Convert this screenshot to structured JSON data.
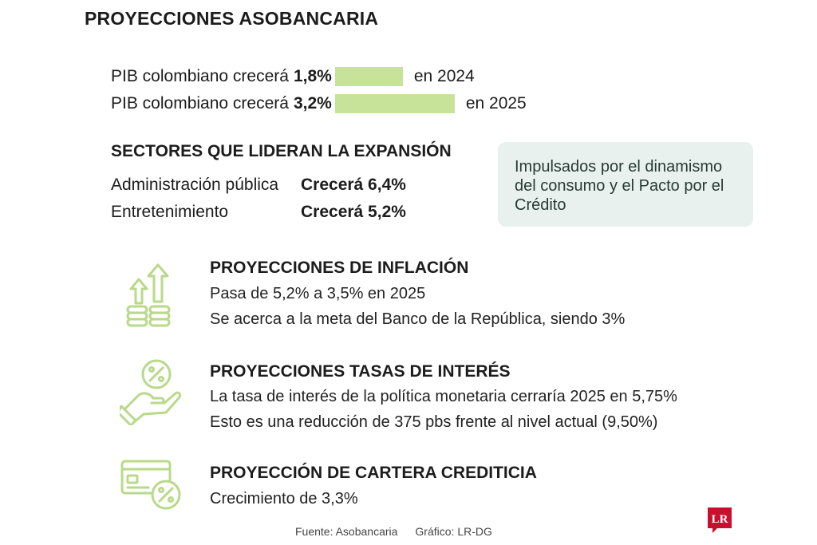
{
  "header": {
    "title": "PROYECCIONES ASOBANCARIA"
  },
  "chart_data": {
    "type": "bar",
    "title": "",
    "categories": [
      "2024",
      "2025"
    ],
    "series": [
      {
        "values": [
          1.8,
          3.2
        ]
      }
    ],
    "row_labels": [
      {
        "prefix": "PIB colombiano crecerá",
        "value_text": "1,8%",
        "suffix": "en 2024"
      },
      {
        "prefix": "PIB colombiano crecerá",
        "value_text": "3,2%",
        "suffix": "en 2025"
      }
    ],
    "colors": {
      "bar": "#c7e39a"
    }
  },
  "sectors": {
    "title": "SECTORES QUE LIDERAN LA EXPANSIÓN",
    "items": [
      {
        "name": "Administración pública",
        "growth": "Crecerá 6,4%"
      },
      {
        "name": "Entretenimiento",
        "growth": "Crecerá 5,2%"
      }
    ]
  },
  "note": {
    "text": "Impulsados por el dinamismo del consumo y el Pacto por el Crédito"
  },
  "sections": [
    {
      "icon": "rising-coins-icon",
      "title": "PROYECCIONES DE INFLACIÓN",
      "lines": [
        "Pasa de 5,2% a 3,5% en 2025",
        "Se acerca a la meta del Banco de la República, siendo 3%"
      ]
    },
    {
      "icon": "hand-percent-icon",
      "title": "PROYECCIONES TASAS DE INTERÉS",
      "lines": [
        "La tasa de interés de la política monetaria cerraría 2025 en 5,75%",
        "Esto es una reducción de 375 pbs frente al nivel actual (9,50%)"
      ]
    },
    {
      "icon": "credit-card-percent-icon",
      "title": "PROYECCIÓN DE CARTERA CREDITICIA",
      "lines": [
        "Crecimiento de 3,3%"
      ]
    }
  ],
  "footer": {
    "source": "Fuente: Asobancaria",
    "graphic": "Gráfico: LR-DG",
    "logo_text": "LR"
  },
  "colors": {
    "icon_green": "#b9d98a",
    "note_bg": "#e8f1ed",
    "logo_red": "#c8102e"
  }
}
